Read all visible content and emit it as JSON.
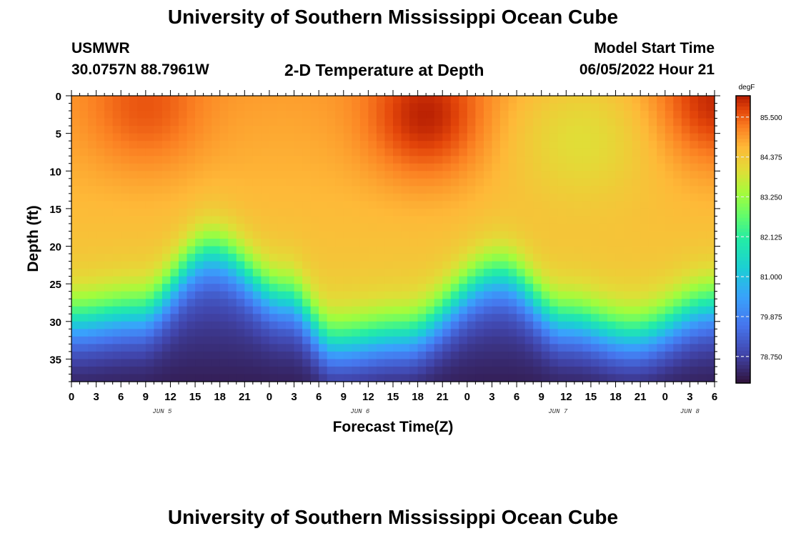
{
  "header": {
    "title": "University of Southern Mississippi Ocean Cube",
    "station_id": "USMWR",
    "coordinates": "30.0757N  88.7961W",
    "subtitle": "2-D Temperature at Depth",
    "model_start_label": "Model Start Time",
    "model_start_value": "06/05/2022 Hour 21"
  },
  "footer": {
    "title": "University of Southern Mississippi Ocean Cube"
  },
  "chart_data": {
    "type": "heatmap",
    "title": "2-D Temperature at Depth",
    "xlabel": "Forecast Time(Z)",
    "ylabel": "Depth (ft)",
    "x_range_hours": [
      0,
      78
    ],
    "x_tick_labels": [
      "0",
      "3",
      "6",
      "9",
      "12",
      "15",
      "18",
      "21",
      "0",
      "3",
      "6",
      "9",
      "12",
      "15",
      "18",
      "21",
      "0",
      "3",
      "6",
      "9",
      "12",
      "15",
      "18",
      "21",
      "0",
      "3",
      "6"
    ],
    "date_labels": [
      {
        "text": "JUN 5",
        "hour": 11
      },
      {
        "text": "JUN 6",
        "hour": 35
      },
      {
        "text": "JUN 7",
        "hour": 59
      },
      {
        "text": "JUN 8",
        "hour": 75
      }
    ],
    "ylim": [
      0,
      38
    ],
    "y_ticks": [
      0,
      5,
      10,
      15,
      20,
      25,
      30,
      35
    ],
    "colorbar": {
      "units": "degF",
      "min": 78.0,
      "max": 86.1,
      "ticks": [
        "85.500",
        "84.375",
        "83.250",
        "82.125",
        "81.000",
        "79.875",
        "78.750"
      ],
      "tick_values": [
        85.5,
        84.375,
        83.25,
        82.125,
        81.0,
        79.875,
        78.75
      ]
    },
    "thermocline": {
      "description": "depth (ft) of the warm/cold boundary vs forecast hour",
      "hours": [
        0,
        8,
        17,
        26,
        32,
        40,
        52,
        60,
        68,
        78
      ],
      "depth_ft": [
        30,
        29,
        21,
        27,
        33,
        32,
        24,
        30,
        32,
        28
      ]
    },
    "hot_spots": [
      {
        "hour": 9,
        "depth_ft": 2,
        "temp": 85.6
      },
      {
        "hour": 43,
        "depth_ft": 3,
        "temp": 86.1
      },
      {
        "hour": 78,
        "depth_ft": 1,
        "temp": 86.0
      }
    ],
    "cool_surface": {
      "hour": 62,
      "depth_ft": 5,
      "temp": 84.1
    },
    "surface_temp_base": 84.9,
    "bottom_temp": 78.2
  }
}
